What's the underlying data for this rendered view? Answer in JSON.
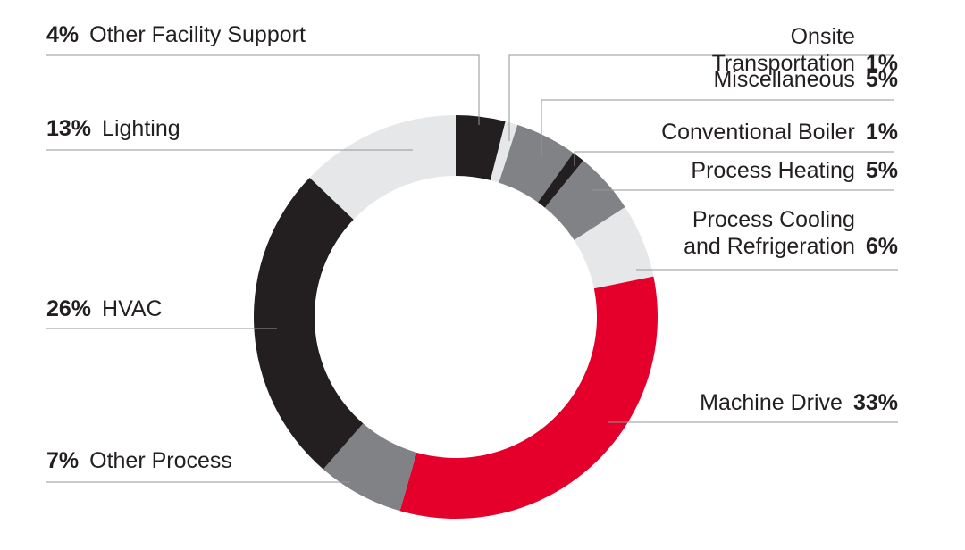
{
  "chart_data": {
    "type": "donut",
    "categories": [
      "Other Facility Support",
      "Onsite Transportation",
      "Miscellaneous",
      "Conventional Boiler",
      "Process Heating",
      "Process Cooling and Refrigeration",
      "Machine Drive",
      "Other Process",
      "HVAC",
      "Lighting"
    ],
    "values": [
      4,
      1,
      5,
      1,
      5,
      6,
      33,
      7,
      26,
      13
    ],
    "value_labels": [
      "4%",
      "1%",
      "5%",
      "1%",
      "5%",
      "6%",
      "33%",
      "7%",
      "26%",
      "13%"
    ],
    "colors": [
      "#231f20",
      "#e6e7e8",
      "#808285",
      "#231f20",
      "#808285",
      "#e6e7e8",
      "#e4002b",
      "#808285",
      "#231f20",
      "#e6e7e8"
    ]
  }
}
